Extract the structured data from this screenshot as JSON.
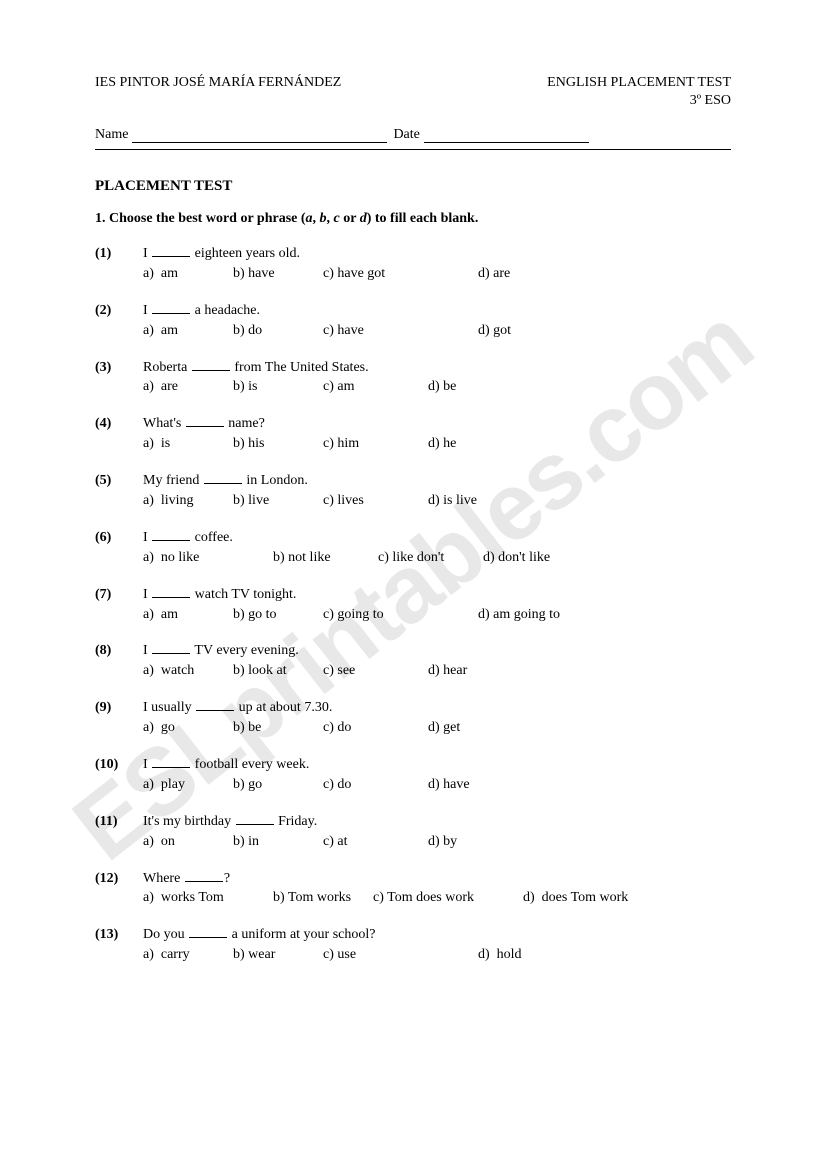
{
  "header": {
    "school": "IES PINTOR JOSÉ MARÍA FERNÁNDEZ",
    "testLabel": "ENGLISH PLACEMENT TEST",
    "level": "3º ESO",
    "nameLabel": "Name",
    "dateLabel": "Date"
  },
  "title": "PLACEMENT TEST",
  "instruction": {
    "prefix": "1. Choose the best word or phrase (",
    "a": "a",
    "c1": ", ",
    "b": "b",
    "c2": ", ",
    "c": "c",
    "or": " or ",
    "d": "d",
    "suffix": ") to fill each blank."
  },
  "watermark": "ESLprintables.com",
  "questions": [
    {
      "num": "(1)",
      "pre": "I ",
      "post": " eighteen years old.",
      "opts": [
        "a)  am",
        "b) have",
        "c) have got",
        "d) are"
      ],
      "widths": [
        90,
        90,
        155,
        100
      ]
    },
    {
      "num": "(2)",
      "pre": "I ",
      "post": " a headache.",
      "opts": [
        "a)  am",
        "b) do",
        "c) have",
        "d) got"
      ],
      "widths": [
        90,
        90,
        155,
        100
      ]
    },
    {
      "num": "(3)",
      "pre": "Roberta ",
      "post": " from The United States.",
      "opts": [
        "a)  are",
        "b) is",
        "c) am",
        "d) be"
      ],
      "widths": [
        90,
        90,
        105,
        100
      ]
    },
    {
      "num": "(4)",
      "pre": "What's ",
      "post": " name?",
      "opts": [
        "a)  is",
        "b) his",
        "c) him",
        "d) he"
      ],
      "widths": [
        90,
        90,
        105,
        100
      ]
    },
    {
      "num": "(5)",
      "pre": "My friend ",
      "post": " in London.",
      "opts": [
        "a)  living",
        "b) live",
        "c) lives",
        "d) is live"
      ],
      "widths": [
        90,
        90,
        105,
        100
      ]
    },
    {
      "num": "(6)",
      "pre": "I ",
      "post": " coffee.",
      "opts": [
        "a)  no like",
        "b) not like",
        "c) like don't",
        "d) don't like"
      ],
      "widths": [
        130,
        105,
        105,
        100
      ]
    },
    {
      "num": "(7)",
      "pre": "I ",
      "post": " watch TV tonight.",
      "opts": [
        "a)  am",
        "b) go to",
        "c) going to",
        "d) am going to"
      ],
      "widths": [
        90,
        90,
        155,
        120
      ]
    },
    {
      "num": "(8)",
      "pre": "I ",
      "post": " TV every evening.",
      "opts": [
        "a)  watch",
        "b) look at",
        "c) see",
        "d) hear"
      ],
      "widths": [
        90,
        90,
        105,
        100
      ]
    },
    {
      "num": "(9)",
      "pre": "I usually ",
      "post": " up at about 7.30.",
      "opts": [
        "a)  go",
        "b) be",
        "c) do",
        "d) get"
      ],
      "widths": [
        90,
        90,
        105,
        100
      ]
    },
    {
      "num": "(10)",
      "pre": "I ",
      "post": " football every week.",
      "opts": [
        "a)  play",
        "b) go",
        "c) do",
        "d) have"
      ],
      "widths": [
        90,
        90,
        105,
        100
      ]
    },
    {
      "num": "(11)",
      "pre": "It's my birthday ",
      "post": " Friday.",
      "opts": [
        "a)  on",
        "b) in",
        "c) at",
        "d) by"
      ],
      "widths": [
        90,
        90,
        105,
        100
      ]
    },
    {
      "num": "(12)",
      "pre": "Where ",
      "post": "?",
      "opts": [
        "a)  works Tom",
        "b) Tom works",
        "c) Tom does work",
        "d)  does Tom work"
      ],
      "widths": [
        130,
        100,
        150,
        140
      ]
    },
    {
      "num": "(13)",
      "pre": "Do you ",
      "post": " a uniform at your school?",
      "opts": [
        "a)  carry",
        "b) wear",
        "c) use",
        "d)  hold"
      ],
      "widths": [
        90,
        90,
        155,
        100
      ]
    }
  ]
}
